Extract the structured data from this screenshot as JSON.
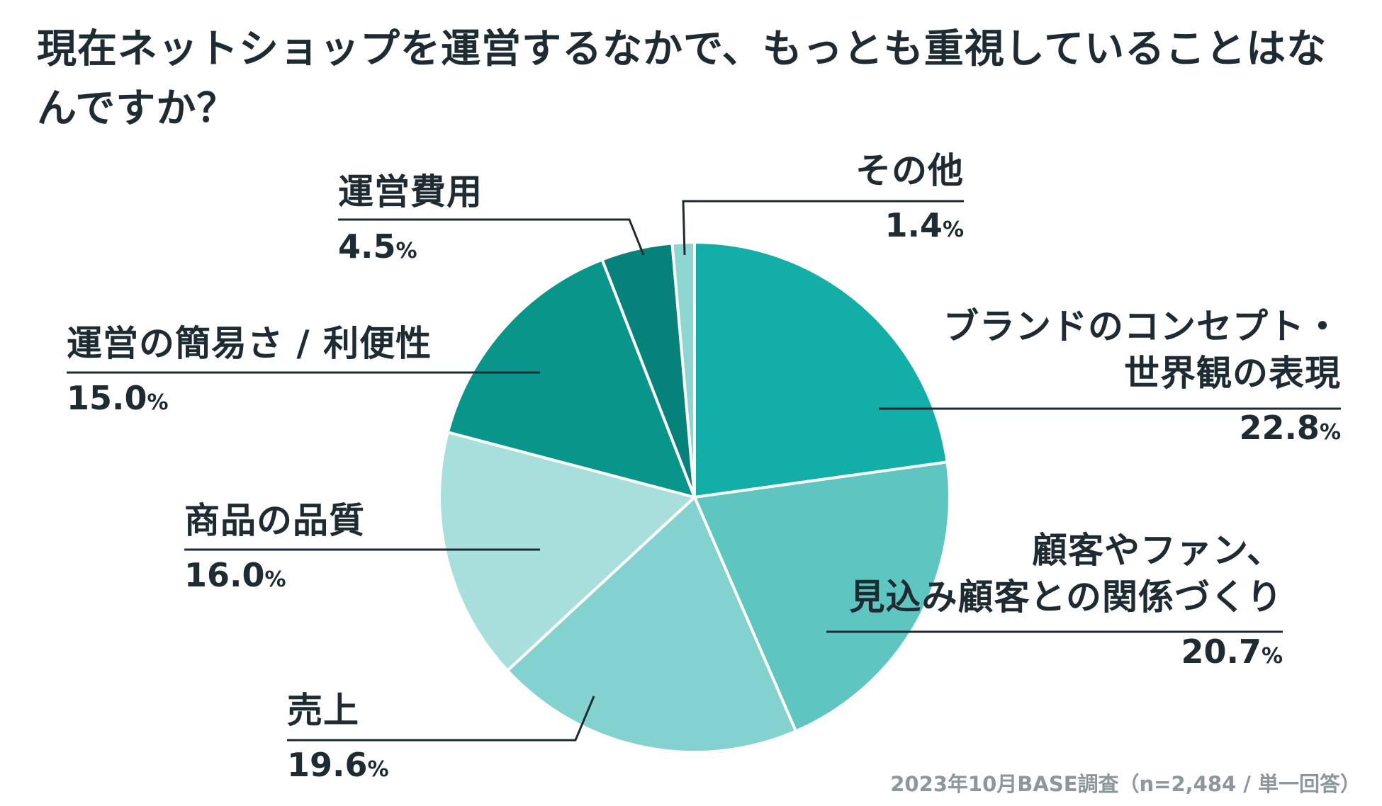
{
  "chart_data": {
    "type": "pie",
    "title": "現在ネットショップを運営するなかで、もっとも重視していることはなんですか？",
    "unit": "%",
    "slices": [
      {
        "label": "ブランドのコンセプト・世界観の表現",
        "label_lines": [
          "ブランドのコンセプト・",
          "世界観の表現"
        ],
        "value": 22.8,
        "value_text": "22.8",
        "color": "#13aea8"
      },
      {
        "label": "顧客やファン、見込み顧客との関係づくり",
        "label_lines": [
          "顧客やファン、",
          "見込み顧客との関係づくり"
        ],
        "value": 20.7,
        "value_text": "20.7",
        "color": "#5fc5c0"
      },
      {
        "label": "売上",
        "label_lines": [
          "売上"
        ],
        "value": 19.6,
        "value_text": "19.6",
        "color": "#83d2cf"
      },
      {
        "label": "商品の品質",
        "label_lines": [
          "商品の品質"
        ],
        "value": 16.0,
        "value_text": "16.0",
        "color": "#a8dfdd"
      },
      {
        "label": "運営の簡易さ / 利便性",
        "label_lines": [
          "運営の簡易さ / 利便性"
        ],
        "value": 15.0,
        "value_text": "15.0",
        "color": "#0a958b"
      },
      {
        "label": "運営費用",
        "label_lines": [
          "運営費用"
        ],
        "value": 4.5,
        "value_text": "4.5",
        "color": "#07827a"
      },
      {
        "label": "その他",
        "label_lines": [
          "その他"
        ],
        "value": 1.4,
        "value_text": "1.4",
        "color": "#8ed6d2"
      }
    ]
  },
  "source": "2023年10月BASE調査（n=2,484 / 単一回答）",
  "colors": {
    "text": "#1f2b33",
    "leader": "#1f2b33",
    "source": "#8d969b",
    "slice_border": "#ffffff"
  }
}
